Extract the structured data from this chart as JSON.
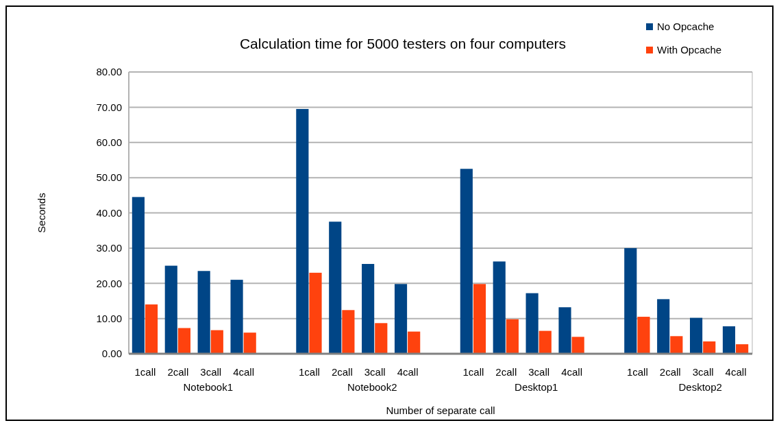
{
  "chart_data": {
    "type": "bar",
    "title": "Calculation time for 5000 testers on four computers",
    "xlabel": "Number of separate call",
    "ylabel": "Seconds",
    "categories": [
      "1call",
      "2call",
      "3call",
      "4call",
      "1call",
      "2call",
      "3call",
      "4call",
      "1call",
      "2call",
      "3call",
      "4call",
      "1call",
      "2call",
      "3call",
      "4call"
    ],
    "series": [
      {
        "name": "No Opcache",
        "color": "#004586",
        "values": [
          44.5,
          25,
          23.5,
          21,
          69.5,
          37.5,
          25.5,
          19.8,
          52.5,
          26.2,
          17.2,
          13.2,
          30,
          15.5,
          10.2,
          7.8
        ]
      },
      {
        "name": "With Opcache",
        "color": "#ff420e",
        "values": [
          14,
          7.3,
          6.7,
          6,
          23,
          12.4,
          8.7,
          6.3,
          19.8,
          9.8,
          6.5,
          4.8,
          10.5,
          5,
          3.5,
          2.7
        ]
      }
    ],
    "annotations": [
      "Notebook1",
      "Notebook2",
      "Desktop1",
      "Desktop2"
    ],
    "ylim": [
      0,
      80
    ],
    "yticks": [
      {
        "value": 0,
        "label": "0.00"
      },
      {
        "value": 10,
        "label": "10.00"
      },
      {
        "value": 20,
        "label": "20.00"
      },
      {
        "value": 30,
        "label": "30.00"
      },
      {
        "value": 40,
        "label": "40.00"
      },
      {
        "value": 50,
        "label": "50.00"
      },
      {
        "value": 60,
        "label": "60.00"
      },
      {
        "value": 70,
        "label": "70.00"
      },
      {
        "value": 80,
        "label": "80.00"
      }
    ],
    "grid": "y",
    "legend": "top right"
  }
}
